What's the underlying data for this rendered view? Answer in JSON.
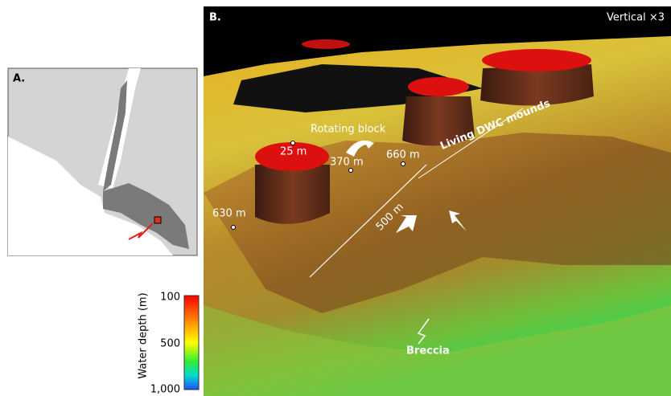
{
  "panel_a": {
    "label": "A."
  },
  "panel_b": {
    "label": "B.",
    "scale_note": "Vertical ×3",
    "annotations": {
      "rotating_block": "Rotating block",
      "depth_25": "25 m",
      "depth_370": "370 m",
      "depth_660": "660 m",
      "depth_630": "630 m",
      "distance": "500 m",
      "mounds": "Living DWC mounds",
      "breccia": "Breccia"
    }
  },
  "colorbar": {
    "title": "Water depth (m)",
    "ticks": [
      "100",
      "500",
      "1,000"
    ]
  }
}
